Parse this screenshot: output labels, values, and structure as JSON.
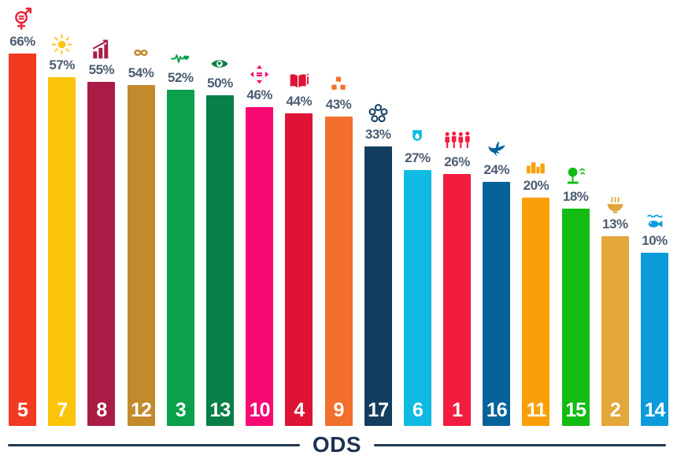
{
  "chart_data": {
    "type": "bar",
    "title": "",
    "xlabel": "ODS",
    "ylabel": "",
    "grid": false,
    "legend": false,
    "ylim": [
      0,
      70
    ],
    "categories": [
      "5",
      "7",
      "8",
      "12",
      "3",
      "13",
      "10",
      "4",
      "9",
      "17",
      "6",
      "1",
      "16",
      "11",
      "15",
      "2",
      "14"
    ],
    "values": [
      66,
      57,
      55,
      54,
      52,
      50,
      46,
      44,
      43,
      33,
      27,
      26,
      24,
      20,
      18,
      13,
      10
    ],
    "value_labels": [
      "66%",
      "57%",
      "55%",
      "54%",
      "52%",
      "50%",
      "46%",
      "44%",
      "43%",
      "33%",
      "27%",
      "26%",
      "24%",
      "20%",
      "18%",
      "13%",
      "10%"
    ],
    "colors": [
      "#F13A1F",
      "#FBC50A",
      "#AA1B46",
      "#C38A2D",
      "#0AA04C",
      "#087F46",
      "#F70B72",
      "#DE1335",
      "#F2702C",
      "#133E5F",
      "#0FBBE2",
      "#F21C3F",
      "#06639A",
      "#F9A008",
      "#13BC13",
      "#E3A63B",
      "#0B9BDB"
    ],
    "icon_colors": [
      "#E8253C",
      "#FBC50A",
      "#AA1B46",
      "#C38A2D",
      "#0AA04C",
      "#087F46",
      "#F70B72",
      "#DE1335",
      "#F2702C",
      "#133E5F",
      "#0FBBE2",
      "#F21C3F",
      "#06639A",
      "#F9A008",
      "#13BC13",
      "#E3A63B",
      "#0B9BDB"
    ],
    "icons": [
      "gender-equality-icon",
      "sun-icon",
      "growth-chart-icon",
      "infinity-icon",
      "heartbeat-icon",
      "eye-globe-icon",
      "equality-arrows-icon",
      "open-book-icon",
      "cubes-icon",
      "rings-icon",
      "water-drop-icon",
      "people-icon",
      "dove-icon",
      "city-icon",
      "tree-icon",
      "bowl-icon",
      "fish-icon"
    ]
  },
  "axis": {
    "label": "ODS"
  },
  "style_colors": {
    "value_label": "#4D5C73",
    "axis": "#1E3250",
    "bar_number": "#FFFFFF"
  }
}
